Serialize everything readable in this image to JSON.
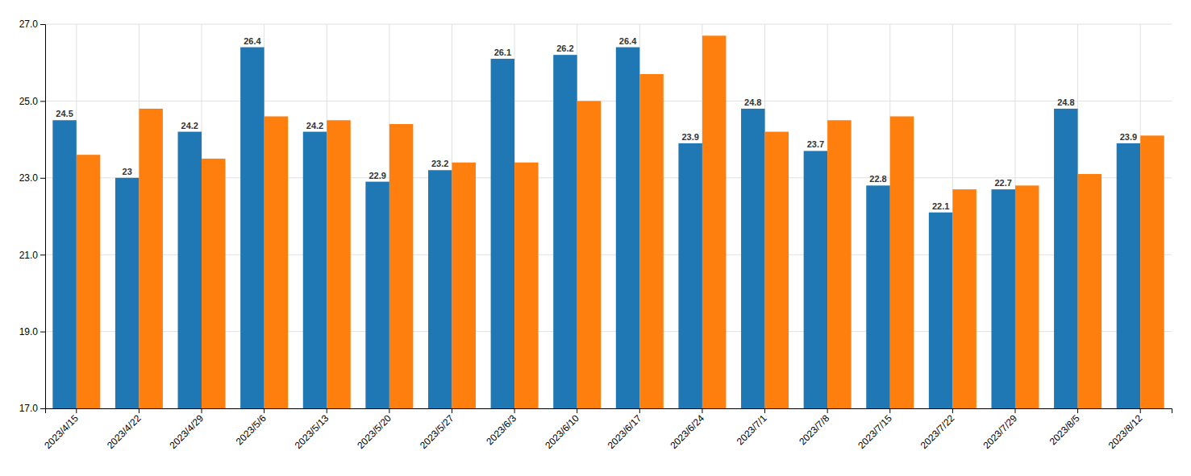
{
  "chart_data": {
    "type": "bar",
    "categories": [
      "2023/4/15",
      "2023/4/22",
      "2023/4/29",
      "2023/5/6",
      "2023/5/13",
      "2023/5/20",
      "2023/5/27",
      "2023/6/3",
      "2023/6/10",
      "2023/6/17",
      "2023/6/24",
      "2023/7/1",
      "2023/7/8",
      "2023/7/15",
      "2023/7/22",
      "2023/7/29",
      "2023/8/5",
      "2023/8/12"
    ],
    "series": [
      {
        "values": [
          24.5,
          23.0,
          24.2,
          26.4,
          24.2,
          22.9,
          23.2,
          26.1,
          26.2,
          26.4,
          23.9,
          24.8,
          23.7,
          22.8,
          22.1,
          22.7,
          24.8,
          23.9
        ],
        "data_labels": true
      },
      {
        "values": [
          23.6,
          24.8,
          23.5,
          24.6,
          24.5,
          24.4,
          23.4,
          23.4,
          25.0,
          25.7,
          26.7,
          24.2,
          24.5,
          24.6,
          22.7,
          22.8,
          23.1,
          24.1
        ]
      }
    ],
    "ylim": [
      17.0,
      27.0
    ],
    "yticks": [
      {
        "value": 17.0,
        "label": "17.0"
      },
      {
        "value": 19.0,
        "label": "19.0"
      },
      {
        "value": 21.0,
        "label": "21.0"
      },
      {
        "value": 23.0,
        "label": "23.0"
      },
      {
        "value": 25.0,
        "label": "25.0"
      },
      {
        "value": 27.0,
        "label": "27.0"
      }
    ],
    "grid": true
  }
}
